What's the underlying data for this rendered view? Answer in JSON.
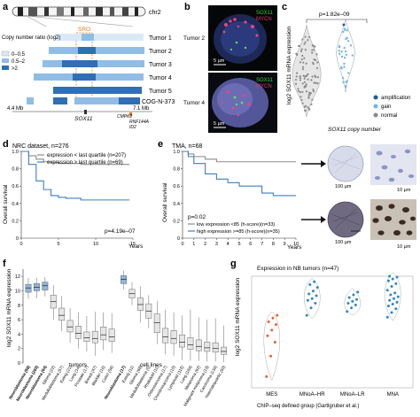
{
  "labels": {
    "a": "a",
    "b": "b",
    "c": "c",
    "d": "d",
    "e": "e",
    "f": "f",
    "g": "g"
  },
  "a": {
    "chrom": "chr2",
    "sro": "SRO",
    "legend_title": "Copy number ratio (log2)",
    "legend": [
      {
        "range": "0–0.5",
        "color": "#dbe9f7"
      },
      {
        "range": "0.5–2",
        "color": "#8fbde6"
      },
      {
        "range": ">2",
        "color": "#2f6fb5"
      }
    ],
    "tumors": [
      "Tumor 1",
      "Tumor 2",
      "Tumor 3",
      "Tumor 4",
      "Tumor 5",
      "COG-N-373"
    ],
    "coord_left": "4.4 Mb",
    "coord_right": "7.1 Mb",
    "genes": {
      "sox11": "SOX11",
      "cmpk2": "CMPK2",
      "rnf144a": "RNF144A",
      "id2": "ID2"
    }
  },
  "b": {
    "legend_sox11": "SOX11",
    "legend_mycn": "MYCN",
    "sox11_color": "#39c93a",
    "mycn_color": "#e0336b",
    "tumor_top": "Tumor 2",
    "tumor_bottom": "Tumor 4",
    "scale_top": "5 µm",
    "scale_bottom": "5 µm"
  },
  "c": {
    "pvalue": "p=1.82e–09",
    "ylabel": "log2 SOX11 mRNA expression",
    "xlabel": "SOX11 copy number",
    "legend": [
      {
        "label": "amplification",
        "color": "#1d5a9e"
      },
      {
        "label": "gain",
        "color": "#6fb8e6"
      },
      {
        "label": "normal",
        "color": "#888888"
      }
    ]
  },
  "d": {
    "title": "NRC dataset, n=276",
    "legend": [
      {
        "label": "expression < last quartile (n=207)",
        "color": "#8c8c8c"
      },
      {
        "label": "expression > last quartile (n=69)",
        "color": "#3d7fc1"
      }
    ],
    "pvalue": "p=4.19e–07",
    "ylabel": "Overall survival",
    "xunit": "Years"
  },
  "e": {
    "title": "TMA, n=68",
    "pvalue": "p=0.02",
    "legend": [
      {
        "label": "low expression <85 (h-score)(n=33)",
        "color": "#8c8c8c"
      },
      {
        "label": "high expression >=85 (h-score)(n=35)",
        "color": "#3d7fc1"
      }
    ],
    "ylabel": "Overall survival",
    "xunit": "Years",
    "scale_large": "100 µm",
    "scale_small": "10 µm"
  },
  "f": {
    "ylabel": "log2 SOX11 mRNA expression",
    "group_tumors": "tumors",
    "group_cells": "cell lines",
    "categories": [
      "Neuroblastoma (88)",
      "Neuroblastoma (283)",
      "Neuroblastoma (64)",
      "Glioma (22)",
      "Medulloblastoma (57)",
      "Ewing (21)",
      "Lung (14)",
      "Prostate (17)",
      "Breast (47)",
      "Bladder (16)",
      "Colon (56)",
      "Neuroblastoma (17)",
      "Ewing (11)",
      "Glioma (68)",
      "Medulloblastoma (5)",
      "Rhabdoid (11)",
      "Osteosarcoma (17)",
      "Chondrosarcoma (10)",
      "Lymphoid (115)",
      "Lung (184)",
      "Melanoma (62)",
      "Malignant melanoma (19)",
      "Carcinoma (134)",
      "Haematopoietic (50)"
    ]
  },
  "g": {
    "title": "Expression in NB tumors (n=47)",
    "ylabel": "log2 SOX11 mRNA expression",
    "categories": [
      "MES",
      "MNoA–HR",
      "MNoA–LR",
      "MNA"
    ],
    "caption": "ChIP–seq defined group (Gartlgruber et al.)"
  },
  "chart_data": [
    {
      "type": "scatter",
      "title": "",
      "xlabel": "SOX11 copy number",
      "ylabel": "log2 SOX11 mRNA expression",
      "series": [
        {
          "name": "normal",
          "values": []
        },
        {
          "name": "gain",
          "values": []
        },
        {
          "name": "amplification",
          "values": []
        }
      ]
    },
    {
      "type": "line",
      "title": "NRC dataset, n=276",
      "xlabel": "Years",
      "ylabel": "Overall survival",
      "x": [
        0,
        1,
        2,
        3,
        4,
        5,
        6,
        8,
        10,
        12,
        14
      ],
      "ylim": [
        0,
        1.0
      ],
      "xticks": [
        0,
        5,
        10,
        15
      ],
      "yticks": [
        0,
        0.2,
        0.4,
        0.6,
        0.8,
        1.0
      ],
      "series": [
        {
          "name": "expression < last quartile (n=207)",
          "values": [
            1.0,
            0.95,
            0.91,
            0.88,
            0.87,
            0.86,
            0.86,
            0.85,
            0.85,
            0.85,
            0.85
          ]
        },
        {
          "name": "expression > last quartile (n=69)",
          "values": [
            1.0,
            0.85,
            0.66,
            0.56,
            0.49,
            0.47,
            0.46,
            0.44,
            0.44,
            0.44,
            0.44
          ]
        }
      ]
    },
    {
      "type": "line",
      "title": "TMA, n=68",
      "xlabel": "Years",
      "ylabel": "Overall survival",
      "x": [
        0,
        0.5,
        1,
        2,
        3,
        4,
        5,
        6,
        7,
        8,
        9,
        10
      ],
      "ylim": [
        0,
        1.0
      ],
      "xticks": [
        0,
        1,
        2,
        3,
        4,
        5,
        6,
        7,
        8,
        9,
        10
      ],
      "yticks": [
        0,
        0.2,
        0.4,
        0.6,
        0.8,
        1.0
      ],
      "series": [
        {
          "name": "low expression <85 (h-score)(n=33)",
          "values": [
            1.0,
            0.97,
            0.94,
            0.91,
            0.88,
            0.88,
            0.88,
            0.88,
            0.88,
            0.88,
            0.88,
            0.88
          ]
        },
        {
          "name": "high expression >=85 (h-score)(n=35)",
          "values": [
            1.0,
            0.94,
            0.86,
            0.74,
            0.68,
            0.64,
            0.6,
            0.6,
            0.52,
            0.49,
            0.49,
            0.49
          ]
        }
      ]
    },
    {
      "type": "bar",
      "title": "",
      "ylabel": "log2 SOX11 mRNA expression",
      "ylim": [
        0,
        13
      ],
      "yticks": [
        0,
        2,
        4,
        6,
        8,
        10,
        12
      ],
      "categories": [
        "Neuroblastoma (88)",
        "Neuroblastoma (283)",
        "Neuroblastoma (64)",
        "Glioma (22)",
        "Medulloblastoma (57)",
        "Ewing (21)",
        "Lung (14)",
        "Prostate (17)",
        "Breast (47)",
        "Bladder (16)",
        "Colon (56)",
        "Neuroblastoma (17)",
        "Ewing (11)",
        "Glioma (68)",
        "Medulloblastoma (5)",
        "Rhabdoid (11)",
        "Osteosarcoma (17)",
        "Chondrosarcoma (10)",
        "Lymphoid (115)",
        "Lung (184)",
        "Melanoma (62)",
        "Malignant melanoma (19)",
        "Carcinoma (134)",
        "Haematopoietic (50)"
      ],
      "highlight": [
        0,
        1,
        2,
        11
      ],
      "q1": [
        9.8,
        10.0,
        10.1,
        7.6,
        5.9,
        4.3,
        3.4,
        3.0,
        2.8,
        3.2,
        3.0,
        11.0,
        9.0,
        7.3,
        6.2,
        4.2,
        2.8,
        2.7,
        2.2,
        1.9,
        1.7,
        1.6,
        1.5,
        1.2
      ],
      "median": [
        10.4,
        10.5,
        10.7,
        8.5,
        6.6,
        5.0,
        4.1,
        3.5,
        3.4,
        3.9,
        3.6,
        11.6,
        9.6,
        8.1,
        7.2,
        5.6,
        3.6,
        3.4,
        2.9,
        2.5,
        2.3,
        2.1,
        2.0,
        1.6
      ],
      "q3": [
        10.9,
        11.0,
        11.2,
        9.4,
        7.6,
        5.9,
        5.1,
        4.3,
        4.4,
        5.0,
        4.7,
        12.1,
        10.2,
        9.0,
        8.2,
        6.8,
        4.8,
        4.5,
        3.9,
        3.5,
        3.2,
        2.9,
        2.8,
        2.2
      ],
      "whisker_low": [
        8.9,
        9.0,
        9.2,
        6.0,
        4.4,
        2.8,
        2.0,
        1.6,
        1.0,
        1.8,
        1.4,
        10.2,
        8.0,
        5.6,
        4.8,
        2.6,
        1.2,
        1.0,
        0.4,
        0.3,
        0.3,
        0.2,
        0.2,
        0.1
      ],
      "whisker_high": [
        11.8,
        11.8,
        11.9,
        10.8,
        9.3,
        7.6,
        7.0,
        6.5,
        7.1,
        7.0,
        6.9,
        12.8,
        11.2,
        10.6,
        9.4,
        8.6,
        7.4,
        7.0,
        6.6,
        7.4,
        6.3,
        6.0,
        6.2,
        5.2
      ]
    },
    {
      "type": "scatter",
      "title": "Expression in NB tumors (n=47)",
      "xlabel": "ChIP–seq defined group (Gartlgruber et al.)",
      "ylabel": "log2 SOX11 mRNA expression",
      "categories": [
        "MES",
        "MNoA–HR",
        "MNoA–LR",
        "MNA"
      ],
      "ylim": [
        4,
        16
      ],
      "series": [
        {
          "name": "MES",
          "values": [
            5.2,
            7.4,
            8.9,
            9.6,
            10.2,
            10.8,
            11.1,
            11.5,
            11.8
          ]
        },
        {
          "name": "MNoA–HR",
          "values": [
            11.8,
            12.6,
            13.1,
            13.4,
            13.6,
            13.9,
            14.1,
            14.4,
            14.8,
            15.1,
            15.4
          ]
        },
        {
          "name": "MNoA–LR",
          "values": [
            12.2,
            12.6,
            12.9,
            13.1,
            13.3,
            13.5,
            13.7,
            14.0,
            14.3
          ]
        },
        {
          "name": "MNA",
          "values": [
            11.6,
            12.1,
            12.5,
            12.8,
            13.0,
            13.2,
            13.4,
            13.6,
            13.8,
            14.0,
            14.2,
            14.5,
            14.9,
            15.2,
            15.5,
            15.7,
            15.9,
            16.0
          ]
        }
      ]
    }
  ]
}
